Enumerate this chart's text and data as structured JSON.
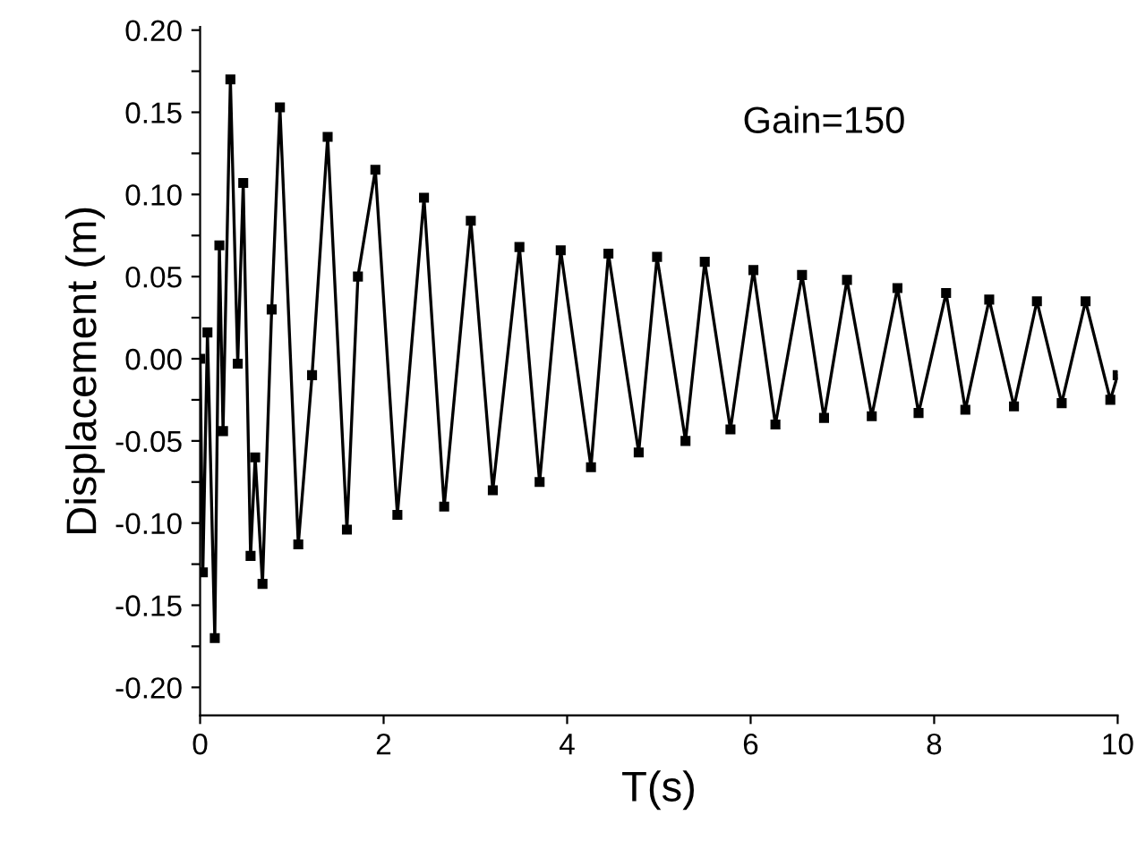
{
  "chart_data": {
    "type": "line",
    "xlabel": "T(s)",
    "ylabel": "Displacement (m)",
    "annotations": [
      "Gain=150"
    ],
    "xlim": [
      0,
      10
    ],
    "ylim": [
      -0.217,
      0.202
    ],
    "xticks": [
      0,
      2,
      4,
      6,
      8,
      10
    ],
    "yticks": [
      {
        "value": -0.2,
        "label": "-0.20"
      },
      {
        "value": -0.175,
        "label": null
      },
      {
        "value": -0.15,
        "label": "-0.15"
      },
      {
        "value": -0.125,
        "label": null
      },
      {
        "value": -0.1,
        "label": "-0.10"
      },
      {
        "value": -0.075,
        "label": null
      },
      {
        "value": -0.05,
        "label": "-0.05"
      },
      {
        "value": -0.025,
        "label": null
      },
      {
        "value": 0,
        "label": "0.00"
      },
      {
        "value": 0.025,
        "label": null
      },
      {
        "value": 0.05,
        "label": "0.05"
      },
      {
        "value": 0.075,
        "label": null
      },
      {
        "value": 0.1,
        "label": "0.10"
      },
      {
        "value": 0.125,
        "label": null
      },
      {
        "value": 0.15,
        "label": "0.15"
      },
      {
        "value": 0.175,
        "label": null
      },
      {
        "value": 0.2,
        "label": "0.20"
      }
    ],
    "marker": "square",
    "line_style": "solid",
    "grid": false,
    "legend": false,
    "series": [
      {
        "color": "#000000",
        "x": [
          0,
          0.03,
          0.08,
          0.16,
          0.21,
          0.25,
          0.33,
          0.41,
          0.47,
          0.55,
          0.6,
          0.68,
          0.78,
          0.87,
          1.07,
          1.22,
          1.39,
          1.6,
          1.72,
          1.91,
          2.15,
          2.44,
          2.66,
          2.95,
          3.19,
          3.48,
          3.7,
          3.93,
          4.26,
          4.45,
          4.78,
          4.98,
          5.29,
          5.5,
          5.78,
          6.03,
          6.27,
          6.56,
          6.8,
          7.05,
          7.32,
          7.6,
          7.83,
          8.13,
          8.34,
          8.6,
          8.87,
          9.12,
          9.39,
          9.65,
          9.92,
          10
        ],
        "values": [
          0.0,
          -0.13,
          0.016,
          -0.17,
          0.069,
          -0.044,
          0.17,
          -0.003,
          0.107,
          -0.12,
          -0.06,
          -0.137,
          0.03,
          0.153,
          -0.113,
          -0.01,
          0.135,
          -0.104,
          0.05,
          0.115,
          -0.095,
          0.098,
          -0.09,
          0.084,
          -0.08,
          0.068,
          -0.075,
          0.066,
          -0.066,
          0.064,
          -0.057,
          0.062,
          -0.05,
          0.059,
          -0.043,
          0.054,
          -0.04,
          0.051,
          -0.036,
          0.048,
          -0.035,
          0.043,
          -0.033,
          0.04,
          -0.031,
          0.036,
          -0.029,
          0.035,
          -0.027,
          0.035,
          -0.025,
          -0.01
        ]
      }
    ]
  }
}
